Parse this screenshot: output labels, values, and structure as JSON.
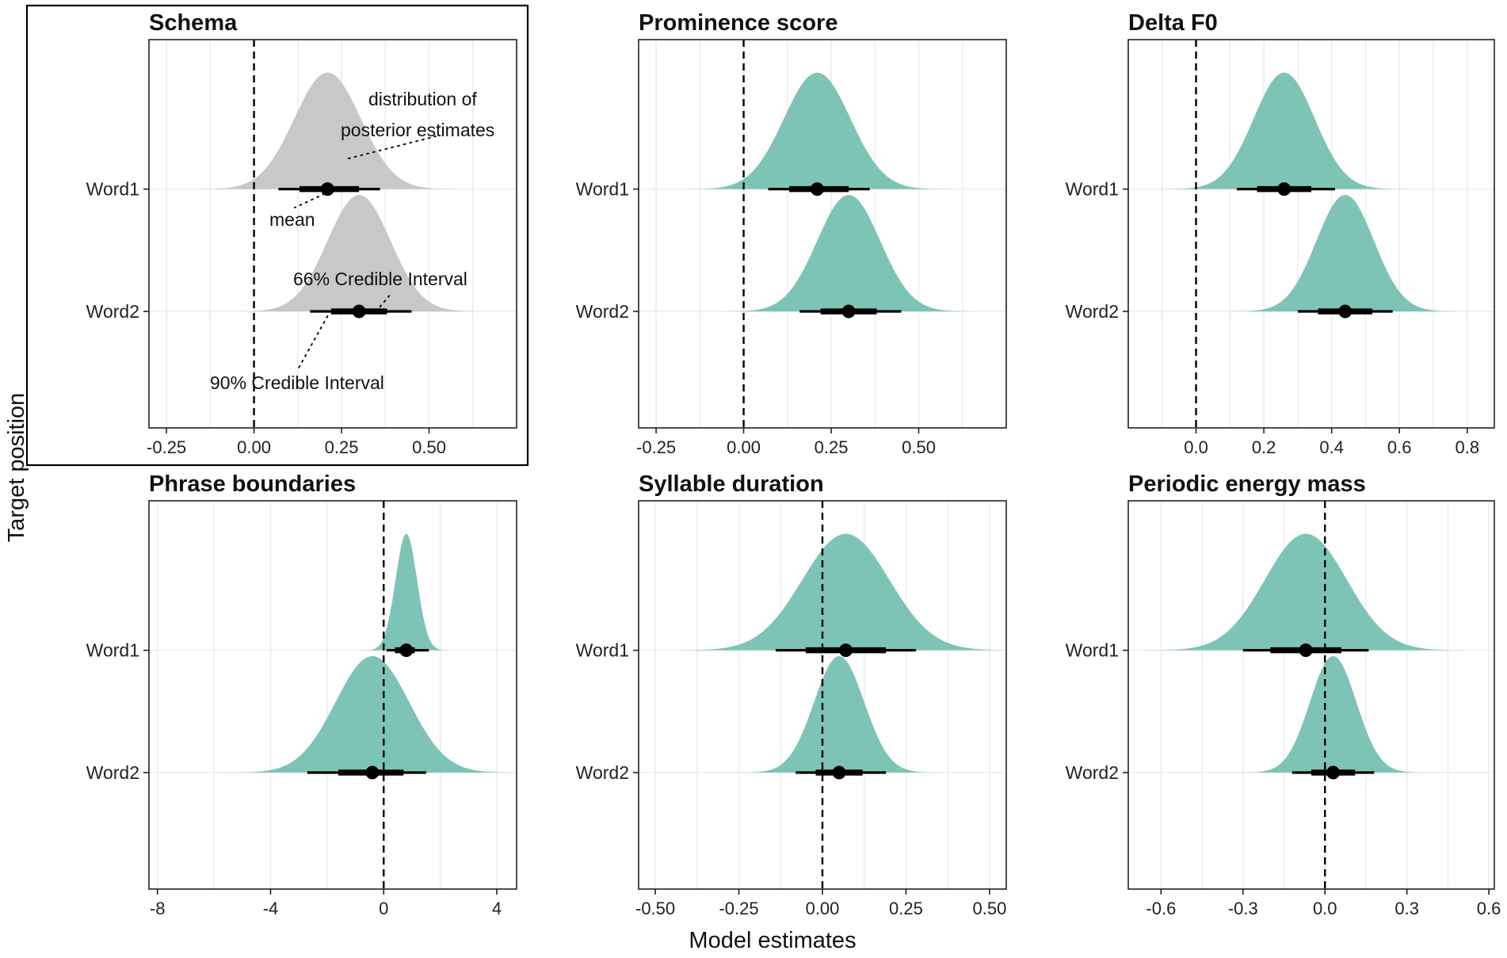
{
  "figure": {
    "ylabel": "Target position",
    "xlabel": "Model estimates"
  },
  "colors": {
    "density_fill": "#7ec4b6",
    "schema_fill": "#c8c8c8",
    "interval": "#000000",
    "grid": "#ececec",
    "zero_line": "#000000"
  },
  "chart_data": [
    {
      "id": "schema",
      "type": "density-interval",
      "title": "Schema",
      "is_schema": true,
      "categories": [
        "Word1",
        "Word2"
      ],
      "xlim": [
        -0.3,
        0.75
      ],
      "xticks": [
        -0.25,
        0.0,
        0.25,
        0.5
      ],
      "xtick_labels": [
        "-0.25",
        "0.00",
        "0.25",
        "0.50"
      ],
      "series": [
        {
          "name": "Word1",
          "mean": 0.21,
          "ci66": [
            0.13,
            0.3
          ],
          "ci90": [
            0.07,
            0.36
          ],
          "sd": 0.095
        },
        {
          "name": "Word2",
          "mean": 0.3,
          "ci66": [
            0.22,
            0.38
          ],
          "ci90": [
            0.16,
            0.45
          ],
          "sd": 0.09
        }
      ],
      "annotations": {
        "distribution_line1": "distribution of",
        "distribution_line2": "posterior estimates",
        "mean": "mean",
        "ci66": "66% Credible Interval",
        "ci90": "90% Credible Interval"
      }
    },
    {
      "id": "prominence",
      "type": "density-interval",
      "title": "Prominence score",
      "categories": [
        "Word1",
        "Word2"
      ],
      "xlim": [
        -0.3,
        0.75
      ],
      "xticks": [
        -0.25,
        0.0,
        0.25,
        0.5
      ],
      "xtick_labels": [
        "-0.25",
        "0.00",
        "0.25",
        "0.50"
      ],
      "series": [
        {
          "name": "Word1",
          "mean": 0.21,
          "ci66": [
            0.13,
            0.3
          ],
          "ci90": [
            0.07,
            0.36
          ],
          "sd": 0.095
        },
        {
          "name": "Word2",
          "mean": 0.3,
          "ci66": [
            0.22,
            0.38
          ],
          "ci90": [
            0.16,
            0.45
          ],
          "sd": 0.09
        }
      ]
    },
    {
      "id": "deltaf0",
      "type": "density-interval",
      "title": "Delta F0",
      "categories": [
        "Word1",
        "Word2"
      ],
      "xlim": [
        -0.2,
        0.88
      ],
      "xticks": [
        0.0,
        0.2,
        0.4,
        0.6,
        0.8
      ],
      "xtick_labels": [
        "0.0",
        "0.2",
        "0.4",
        "0.6",
        "0.8"
      ],
      "series": [
        {
          "name": "Word1",
          "mean": 0.26,
          "ci66": [
            0.18,
            0.34
          ],
          "ci90": [
            0.12,
            0.41
          ],
          "sd": 0.09
        },
        {
          "name": "Word2",
          "mean": 0.44,
          "ci66": [
            0.36,
            0.52
          ],
          "ci90": [
            0.3,
            0.58
          ],
          "sd": 0.085
        }
      ]
    },
    {
      "id": "phrase",
      "type": "density-interval",
      "title": "Phrase boundaries",
      "categories": [
        "Word1",
        "Word2"
      ],
      "xlim": [
        -8.3,
        4.7
      ],
      "xticks": [
        -8,
        -4,
        0,
        4
      ],
      "xtick_labels": [
        "-8",
        "-4",
        "0",
        "4"
      ],
      "series": [
        {
          "name": "Word1",
          "mean": 0.8,
          "ci66": [
            0.4,
            1.1
          ],
          "ci90": [
            0.1,
            1.6
          ],
          "sd": 0.38
        },
        {
          "name": "Word2",
          "mean": -0.4,
          "ci66": [
            -1.6,
            0.7
          ],
          "ci90": [
            -2.7,
            1.5
          ],
          "sd": 1.3
        }
      ]
    },
    {
      "id": "syllable",
      "type": "density-interval",
      "title": "Syllable duration",
      "categories": [
        "Word1",
        "Word2"
      ],
      "xlim": [
        -0.55,
        0.55
      ],
      "xticks": [
        -0.5,
        -0.25,
        0.0,
        0.25,
        0.5
      ],
      "xtick_labels": [
        "-0.50",
        "-0.25",
        "0.00",
        "0.25",
        "0.50"
      ],
      "series": [
        {
          "name": "Word1",
          "mean": 0.07,
          "ci66": [
            -0.05,
            0.19
          ],
          "ci90": [
            -0.14,
            0.28
          ],
          "sd": 0.13
        },
        {
          "name": "Word2",
          "mean": 0.05,
          "ci66": [
            -0.02,
            0.12
          ],
          "ci90": [
            -0.08,
            0.19
          ],
          "sd": 0.075
        }
      ]
    },
    {
      "id": "energy",
      "type": "density-interval",
      "title": "Periodic energy mass",
      "categories": [
        "Word1",
        "Word2"
      ],
      "xlim": [
        -0.72,
        0.62
      ],
      "xticks": [
        -0.6,
        -0.3,
        0.0,
        0.3,
        0.6
      ],
      "xtick_labels": [
        "-0.6",
        "-0.3",
        "0.0",
        "0.3",
        "0.6"
      ],
      "series": [
        {
          "name": "Word1",
          "mean": -0.07,
          "ci66": [
            -0.2,
            0.06
          ],
          "ci90": [
            -0.3,
            0.16
          ],
          "sd": 0.15
        },
        {
          "name": "Word2",
          "mean": 0.03,
          "ci66": [
            -0.05,
            0.11
          ],
          "ci90": [
            -0.12,
            0.18
          ],
          "sd": 0.085
        }
      ]
    }
  ]
}
